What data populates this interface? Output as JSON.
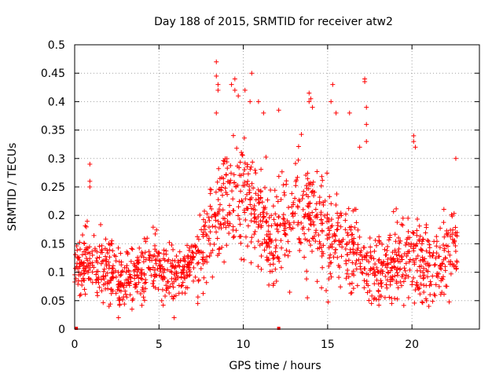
{
  "chart_data": {
    "type": "scatter",
    "title": "Day 188 of 2015, SRMTID for receiver atw2",
    "xlabel": "GPS time / hours",
    "ylabel": "SRMTID / TECUs",
    "xlim": [
      0,
      24
    ],
    "ylim": [
      0,
      0.5
    ],
    "xticks": [
      0,
      5,
      10,
      15,
      20
    ],
    "xtick_labels": [
      "0",
      "5",
      "10",
      "15",
      "20"
    ],
    "yticks": [
      0,
      0.05,
      0.1,
      0.15,
      0.2,
      0.25,
      0.3,
      0.35,
      0.4,
      0.45,
      0.5
    ],
    "ytick_labels": [
      "0",
      "0.05",
      "0.1",
      "0.15",
      "0.2",
      "0.25",
      "0.3",
      "0.35",
      "0.4",
      "0.45",
      "0.5"
    ],
    "grid": true,
    "series": [
      {
        "name": "SRMTID",
        "color": "#ff0000",
        "marker": "plus",
        "profile_x": [
          0,
          1,
          2,
          2.5,
          3,
          4,
          5,
          6,
          6.5,
          7,
          7.5,
          8,
          8.5,
          9,
          10,
          11,
          11.5,
          12,
          13,
          14,
          15,
          16,
          17,
          18,
          19,
          20,
          21,
          22,
          22.7
        ],
        "profile_median": [
          0.11,
          0.12,
          0.105,
          0.08,
          0.09,
          0.11,
          0.11,
          0.1,
          0.09,
          0.12,
          0.13,
          0.17,
          0.2,
          0.23,
          0.24,
          0.2,
          0.15,
          0.17,
          0.2,
          0.21,
          0.17,
          0.15,
          0.12,
          0.1,
          0.12,
          0.13,
          0.1,
          0.13,
          0.15
        ],
        "profile_spread": [
          0.03,
          0.04,
          0.04,
          0.035,
          0.035,
          0.035,
          0.035,
          0.035,
          0.03,
          0.035,
          0.04,
          0.05,
          0.06,
          0.06,
          0.06,
          0.055,
          0.05,
          0.055,
          0.06,
          0.06,
          0.055,
          0.05,
          0.045,
          0.04,
          0.045,
          0.05,
          0.045,
          0.045,
          0.04
        ],
        "high_outliers": [
          [
            0.9,
            0.29
          ],
          [
            0.9,
            0.26
          ],
          [
            0.9,
            0.25
          ],
          [
            8.4,
            0.47
          ],
          [
            8.4,
            0.445
          ],
          [
            8.5,
            0.43
          ],
          [
            8.5,
            0.42
          ],
          [
            8.4,
            0.38
          ],
          [
            9.5,
            0.44
          ],
          [
            9.5,
            0.42
          ],
          [
            9.3,
            0.43
          ],
          [
            9.7,
            0.41
          ],
          [
            10.1,
            0.42
          ],
          [
            10.5,
            0.45
          ],
          [
            10.4,
            0.4
          ],
          [
            10.9,
            0.4
          ],
          [
            11.2,
            0.38
          ],
          [
            12.1,
            0.385
          ],
          [
            13.9,
            0.415
          ],
          [
            14.0,
            0.405
          ],
          [
            13.9,
            0.4
          ],
          [
            14.1,
            0.39
          ],
          [
            15.3,
            0.43
          ],
          [
            15.2,
            0.4
          ],
          [
            15.5,
            0.38
          ],
          [
            16.3,
            0.38
          ],
          [
            17.2,
            0.435
          ],
          [
            17.2,
            0.44
          ],
          [
            17.3,
            0.39
          ],
          [
            17.3,
            0.36
          ],
          [
            17.3,
            0.33
          ],
          [
            16.9,
            0.32
          ],
          [
            20.1,
            0.34
          ],
          [
            20.1,
            0.33
          ],
          [
            20.2,
            0.32
          ],
          [
            22.6,
            0.3
          ]
        ],
        "low_outliers": [
          [
            2.6,
            0.02
          ],
          [
            5.9,
            0.02
          ],
          [
            3.4,
            0.035
          ],
          [
            7.3,
            0.045
          ],
          [
            13.8,
            0.055
          ],
          [
            17.6,
            0.045
          ],
          [
            18.8,
            0.045
          ],
          [
            21.0,
            0.04
          ]
        ],
        "bottom_markers": [
          [
            0.1,
            0
          ],
          [
            12.1,
            0
          ]
        ]
      }
    ]
  }
}
